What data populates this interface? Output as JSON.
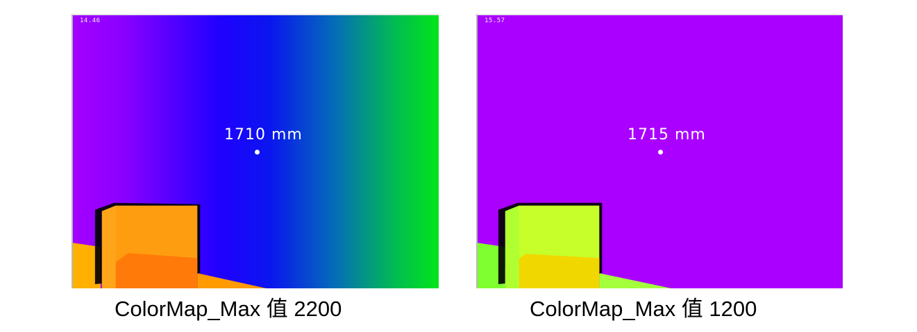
{
  "left_view": {
    "fps": "14.46",
    "distance": "1710 mm",
    "caption": "ColorMap_Max 值 2200",
    "colormap": [
      "#a400ff",
      "#2000ff",
      "#0a16ef",
      "#02bb52",
      "#00e519"
    ],
    "box_color": "#ff9a0a",
    "floor_color": "#ffb300"
  },
  "right_view": {
    "fps": "15.57",
    "distance": "1715 mm",
    "caption": "ColorMap_Max 值 1200",
    "background_color": "#aa00ff",
    "box_color": "#b8ff22",
    "floor_color": "#a2ff3a"
  }
}
